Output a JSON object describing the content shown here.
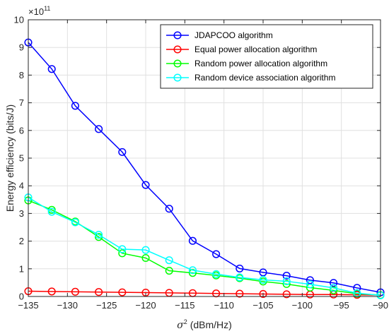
{
  "chart_data": {
    "type": "line",
    "title": "",
    "xlabel": "(dBm/Hz)",
    "xlabel_symbol": "σ",
    "xlabel_sup": "2",
    "ylabel": "Energy efficiency (bits/J)",
    "y_multiplier": "×10",
    "y_multiplier_exp": "11",
    "xlim": [
      -135,
      -90
    ],
    "ylim": [
      0,
      10
    ],
    "x_ticks": [
      -135,
      -130,
      -125,
      -120,
      -115,
      -110,
      -105,
      -100,
      -95,
      -90
    ],
    "y_ticks": [
      0,
      1,
      2,
      3,
      4,
      5,
      6,
      7,
      8,
      9,
      10
    ],
    "grid": true,
    "legend_position": "top-right",
    "x": [
      -135,
      -132,
      -129,
      -126,
      -123,
      -120,
      -117,
      -114,
      -111,
      -108,
      -105,
      -102,
      -99,
      -96,
      -93,
      -90
    ],
    "series": [
      {
        "name": "JDAPCOO  algorithm",
        "color": "#0000ff",
        "values": [
          9.18,
          8.22,
          6.89,
          6.05,
          5.22,
          4.03,
          3.17,
          2.01,
          1.53,
          1.01,
          0.87,
          0.75,
          0.59,
          0.49,
          0.31,
          0.15
        ]
      },
      {
        "name": "Equal power allocation algorithm",
        "color": "#ff0000",
        "values": [
          0.19,
          0.18,
          0.17,
          0.16,
          0.15,
          0.14,
          0.13,
          0.12,
          0.11,
          0.1,
          0.09,
          0.08,
          0.07,
          0.07,
          0.06,
          0.05
        ]
      },
      {
        "name": "Random power allocation algorithm",
        "color": "#00ff00",
        "values": [
          3.47,
          3.13,
          2.71,
          2.15,
          1.56,
          1.39,
          0.93,
          0.85,
          0.76,
          0.66,
          0.54,
          0.45,
          0.32,
          0.22,
          0.1,
          0.05
        ]
      },
      {
        "name": "Random device association algorithm",
        "color": "#00ffff",
        "values": [
          3.58,
          3.06,
          2.68,
          2.23,
          1.71,
          1.68,
          1.31,
          0.95,
          0.81,
          0.69,
          0.6,
          0.55,
          0.44,
          0.31,
          0.12,
          0.04
        ]
      }
    ]
  }
}
